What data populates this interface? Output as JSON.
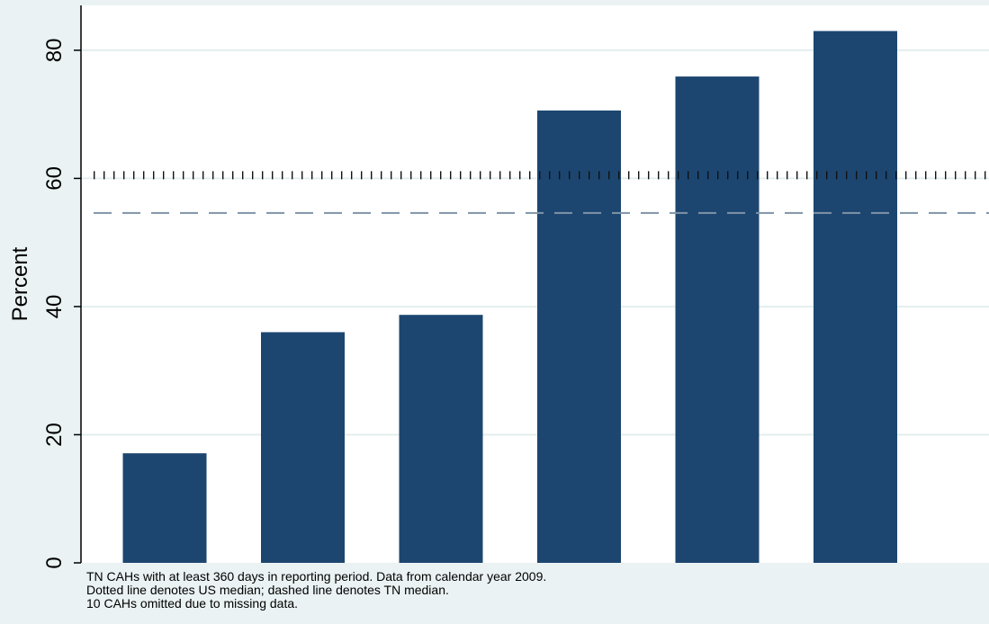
{
  "chart_data": {
    "type": "bar",
    "title": "",
    "xlabel": "",
    "ylabel": "Percent",
    "ylim": [
      0,
      87
    ],
    "yticks": [
      0,
      20,
      40,
      60,
      80
    ],
    "grid": true,
    "values": [
      17.1,
      36.0,
      38.7,
      70.6,
      75.9,
      83.0
    ],
    "bar_color": "#1c4670",
    "reference_lines": [
      {
        "style": "dotted",
        "value": 60.5,
        "color": "#111111"
      },
      {
        "style": "dashed",
        "value": 54.6,
        "color": "#7f93a6"
      }
    ],
    "notes": [
      "TN CAHs with at least 360 days in reporting period. Data from calendar year 2009.",
      "Dotted line denotes US median; dashed line denotes TN median.",
      "10 CAHs omitted due to missing data."
    ]
  },
  "colors": {
    "background": "#eaf2f3",
    "plot_background": "#ffffff",
    "gridline": "#e4eeef"
  }
}
